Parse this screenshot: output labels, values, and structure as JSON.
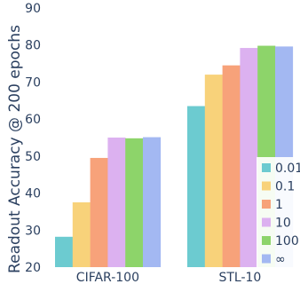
{
  "chart_data": {
    "type": "bar",
    "ylabel": "Readout Accuracy @ 200 epochs",
    "xlabel": "",
    "categories": [
      "CIFAR-100",
      "STL-10"
    ],
    "ylim": [
      20,
      90
    ],
    "yticks": [
      20,
      30,
      40,
      50,
      60,
      70,
      80,
      90
    ],
    "grid": false,
    "legend_position": "bottom-right",
    "series": [
      {
        "name": "0.01",
        "color": "#6ccbd0",
        "values": [
          28.2,
          63.5
        ]
      },
      {
        "name": "0.1",
        "color": "#f8d27a",
        "values": [
          37.5,
          72.0
        ]
      },
      {
        "name": "1",
        "color": "#f7a27a",
        "values": [
          49.5,
          74.5
        ]
      },
      {
        "name": "10",
        "color": "#dcb1f0",
        "values": [
          55.0,
          79.2
        ]
      },
      {
        "name": "100",
        "color": "#8dd46a",
        "values": [
          54.8,
          79.8
        ]
      },
      {
        "name": "∞",
        "color": "#a3b8f2",
        "values": [
          55.1,
          79.6
        ]
      }
    ]
  }
}
